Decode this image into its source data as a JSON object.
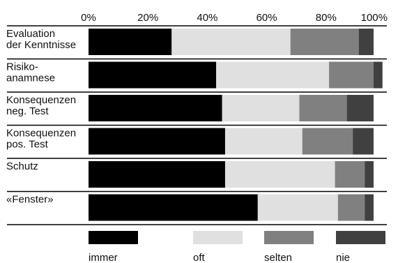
{
  "chart_data": {
    "type": "bar",
    "orientation": "horizontal",
    "stacked": true,
    "percent": true,
    "title": "",
    "xlabel": "",
    "ylabel": "",
    "xlim": [
      0,
      100
    ],
    "x_ticks": [
      "0%",
      "20%",
      "40%",
      "60%",
      "80%",
      "100%"
    ],
    "categories": [
      [
        "Evaluation",
        "der Kenntnisse"
      ],
      [
        "Risiko-",
        "anamnese"
      ],
      [
        "Konsequenzen",
        "neg. Test"
      ],
      [
        "Konsequenzen",
        "pos. Test"
      ],
      [
        "Schutz"
      ],
      [
        "«Fenster»"
      ]
    ],
    "series": [
      {
        "name": "immer",
        "color": "#000000",
        "values": [
          28,
          43,
          45,
          46,
          46,
          57
        ]
      },
      {
        "name": "oft",
        "color": "#e0e0e0",
        "values": [
          40,
          38,
          26,
          26,
          37,
          27
        ]
      },
      {
        "name": "selten",
        "color": "#808080",
        "values": [
          23,
          15,
          16,
          17,
          10,
          9
        ]
      },
      {
        "name": "nie",
        "color": "#404040",
        "values": [
          5,
          3,
          9,
          7,
          3,
          3
        ]
      }
    ],
    "legend_position": "bottom",
    "grid": false
  }
}
